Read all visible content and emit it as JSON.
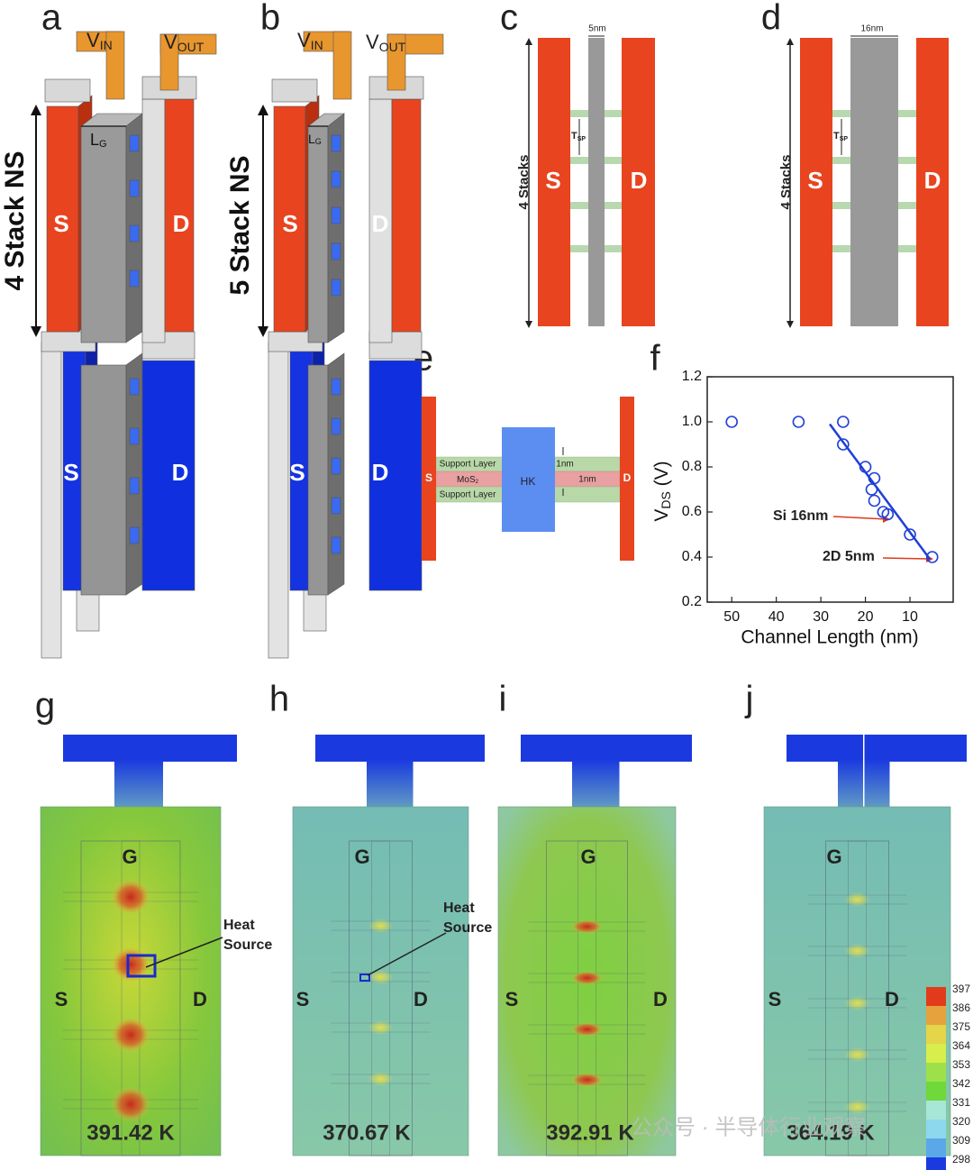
{
  "panels": {
    "a": {
      "label": "a",
      "v_in": "V",
      "v_in_sub": "IN",
      "v_out": "V",
      "v_out_sub": "OUT",
      "lg": "L",
      "lg_sub": "G",
      "stack": "4 Stack NS",
      "top_s": "S",
      "top_d": "D",
      "bottom_s": "S",
      "bottom_d": "D"
    },
    "b": {
      "label": "b",
      "v_in": "V",
      "v_in_sub": "IN",
      "v_out": "V",
      "v_out_sub": "OUT",
      "lg": "L",
      "lg_sub": "G",
      "stack": "5 Stack NS",
      "top_s": "S",
      "top_d": "D",
      "bottom_s": "S",
      "bottom_d": "D"
    },
    "c": {
      "label": "c",
      "width": "5nm",
      "tsp": "T",
      "tsp_sub": "SP",
      "stacks": "4 Stacks",
      "s": "S",
      "d": "D"
    },
    "d": {
      "label": "d",
      "width": "16nm",
      "tsp": "T",
      "tsp_sub": "SP",
      "stacks": "4 Stacks",
      "s": "S",
      "d": "D"
    },
    "e": {
      "label": "e",
      "s": "S",
      "d": "D",
      "support_top": "Support Layer",
      "mos": "MoS",
      "mos_sub": "2",
      "support_bottom": "Support Layer",
      "hk": "HK",
      "t1": "1nm",
      "t2": "1nm"
    },
    "f": {
      "label": "f"
    },
    "g": {
      "label": "g",
      "gate": "G",
      "s": "S",
      "d": "D",
      "heat": "Heat",
      "source": "Source",
      "temp": "391.42 K"
    },
    "h": {
      "label": "h",
      "gate": "G",
      "s": "S",
      "d": "D",
      "heat": "Heat",
      "source": "Source",
      "temp": "370.67 K"
    },
    "i": {
      "label": "i",
      "gate": "G",
      "s": "S",
      "d": "D",
      "temp": "392.91 K"
    },
    "j": {
      "label": "j",
      "gate": "G",
      "s": "S",
      "d": "D",
      "temp": "364.19 K"
    }
  },
  "colorbar": {
    "labels": [
      397,
      386,
      375,
      364,
      353,
      342,
      331,
      320,
      309,
      298
    ],
    "colors": [
      "#e23b1c",
      "#e6a23c",
      "#e4d54a",
      "#d8ee4a",
      "#9ee04a",
      "#6fd83a",
      "#a8e6d8",
      "#8ed8ee",
      "#5aa8e8",
      "#1a3ae0"
    ]
  },
  "watermark": "公众号 · 半导体行业观察",
  "chart_data": {
    "type": "scatter",
    "ylabel": {
      "text": "V",
      "sub": "DS",
      "unit": " (V)"
    },
    "xlabel": "Channel Length (nm)",
    "x": [
      50,
      35,
      25,
      25,
      20,
      18,
      18.6,
      18,
      16,
      15,
      10,
      5
    ],
    "values": [
      1.0,
      1.0,
      1.0,
      0.9,
      0.8,
      0.75,
      0.7,
      0.65,
      0.6,
      0.59,
      0.5,
      0.4
    ],
    "color": "#1f3fd6",
    "fit": {
      "x": [
        28,
        5.5
      ],
      "values": [
        0.99,
        0.39
      ]
    },
    "annotations": [
      "Si 16nm",
      "2D 5nm"
    ],
    "xlim": [
      55.5,
      0.3
    ],
    "ylim": [
      0.2,
      1.2
    ],
    "xticks": [
      50,
      40,
      30,
      20,
      10
    ],
    "yticks": [
      0.2,
      0.4,
      0.6,
      0.8,
      {
        "value": 1,
        "label": "1.0"
      },
      1.2
    ]
  }
}
